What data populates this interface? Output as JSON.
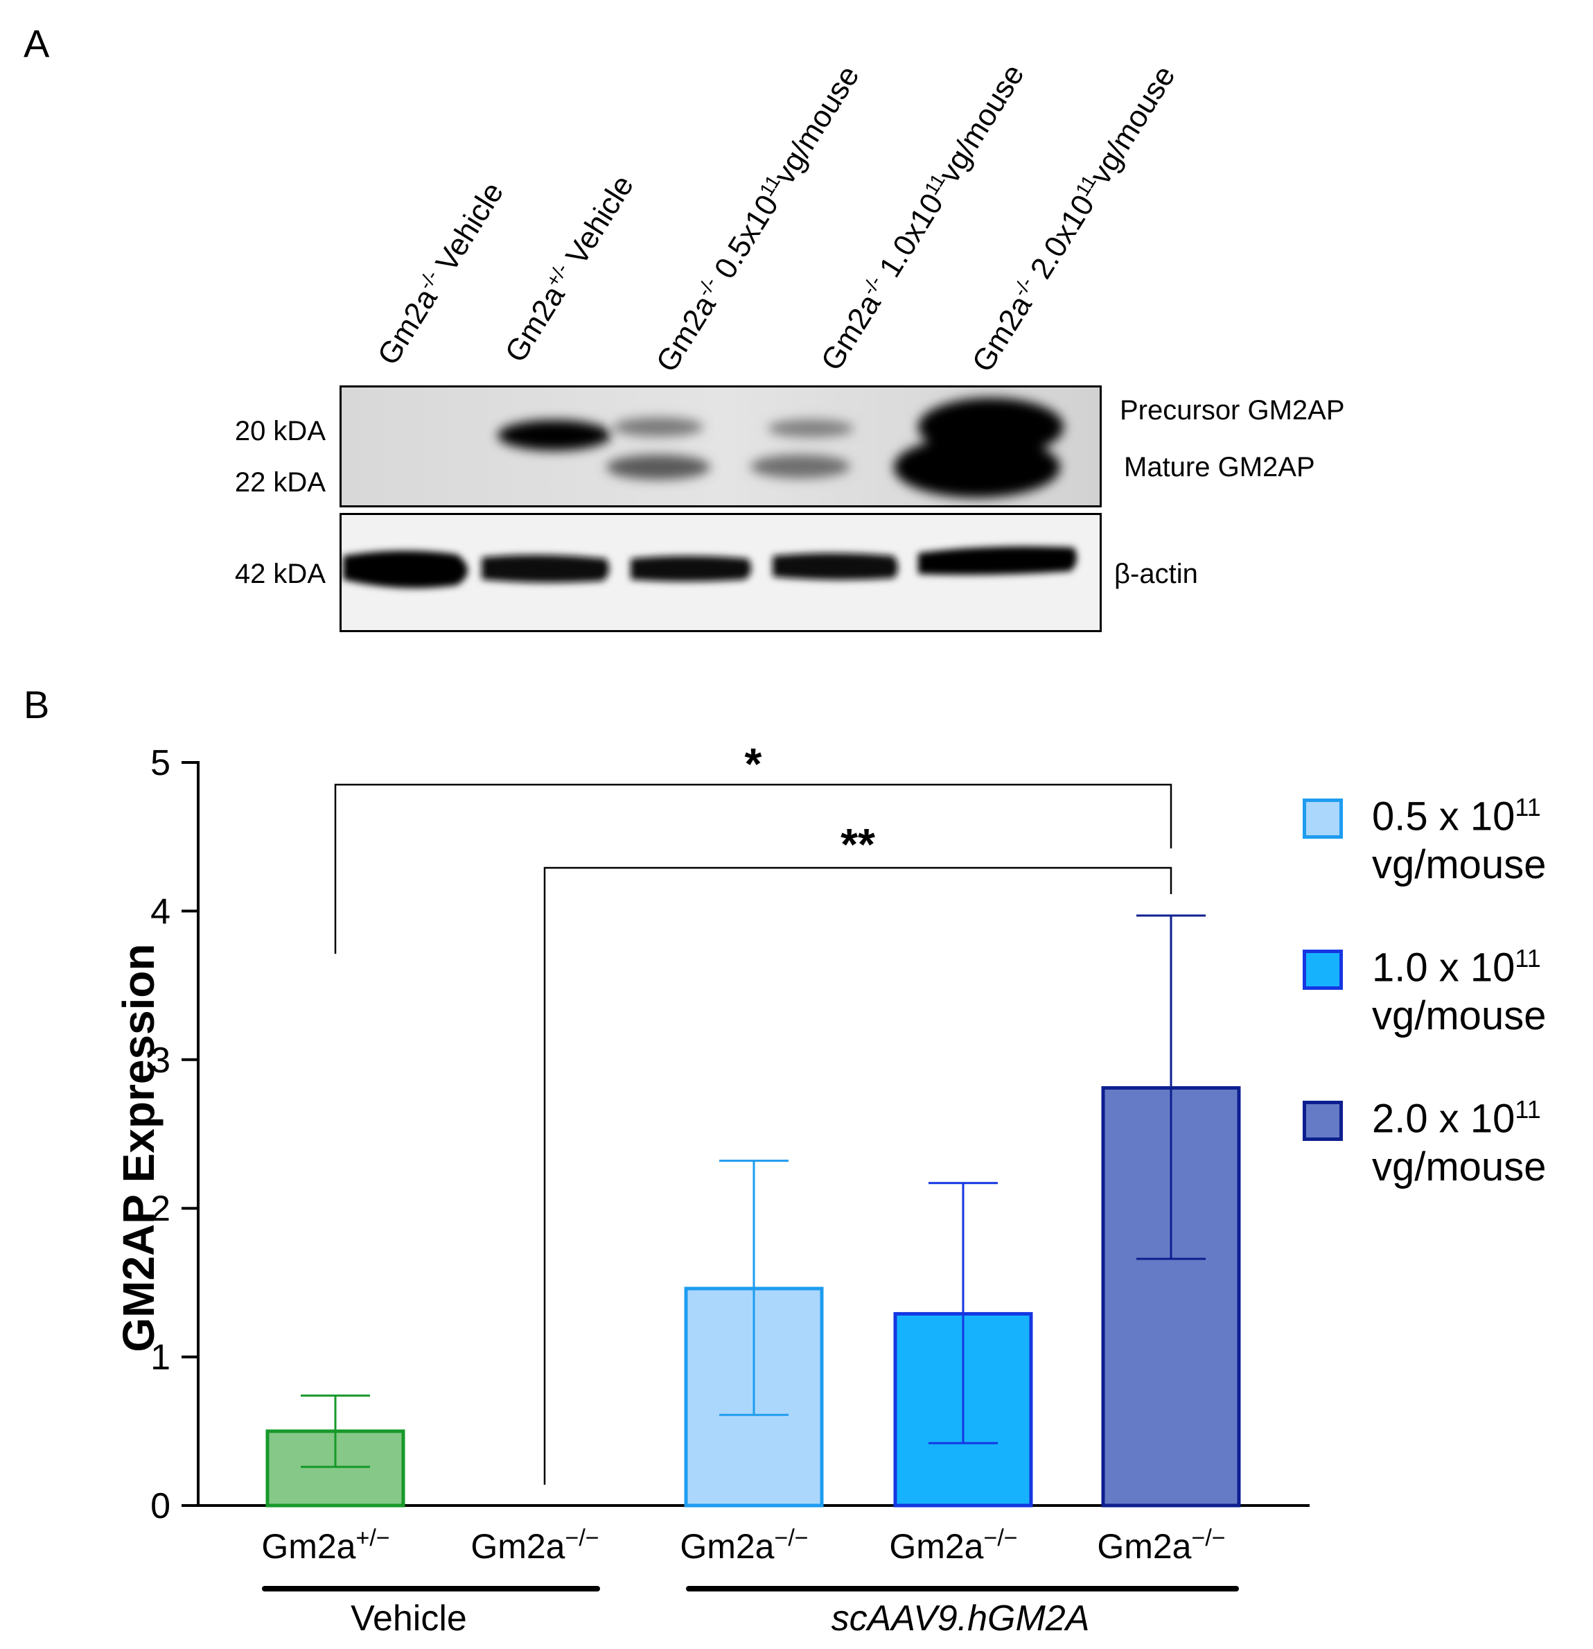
{
  "panelA": {
    "letter": "A",
    "lanes": [
      {
        "label": "Gm2a",
        "sup": "-/-",
        "rest": " Vehicle"
      },
      {
        "label": "Gm2a",
        "sup": "+/-",
        "rest": " Vehicle"
      },
      {
        "label": "Gm2a",
        "sup": "-/-",
        "rest": " 0.5x10",
        "sup2": "11",
        "rest2": "vg/mouse"
      },
      {
        "label": "Gm2a",
        "sup": "-/-",
        "rest": " 1.0x10",
        "sup2": "11",
        "rest2": "vg/mouse"
      },
      {
        "label": "Gm2a",
        "sup": "-/-",
        "rest": " 2.0x10",
        "sup2": "11",
        "rest2": "vg/mouse"
      }
    ],
    "markers": [
      "20 kDA",
      "22 kDA",
      "42 kDA"
    ],
    "band_labels": [
      "Precursor GM2AP",
      "Mature GM2AP",
      "β-actin"
    ]
  },
  "panelB": {
    "letter": "B",
    "chart_data": {
      "type": "bar",
      "ylabel": "GM2AP Expression",
      "ylim": [
        0,
        5
      ],
      "yticks": [
        "0",
        "1",
        "2",
        "3",
        "4",
        "5"
      ],
      "categories": [
        "Gm2a+/−",
        "Gm2a−/−",
        "Gm2a−/−",
        "Gm2a−/−",
        "Gm2a−/−"
      ],
      "category_base": "Gm2a",
      "category_sups": [
        "+/−",
        "−/−",
        "−/−",
        "−/−",
        "−/−"
      ],
      "values": [
        0.5,
        0,
        1.46,
        1.29,
        2.81
      ],
      "error_low": [
        0.26,
        0,
        0.61,
        0.42,
        1.66
      ],
      "error_high": [
        0.74,
        0,
        2.32,
        2.17,
        3.97
      ],
      "bar_fills": [
        "#86c888",
        "#ffffff",
        "#acd7fc",
        "#17b2fd",
        "#657bc5"
      ],
      "bar_strokes": [
        "#17992a",
        "#000000",
        "#1e9cf0",
        "#1536e2",
        "#0d1f8f"
      ],
      "group_labels": [
        "Vehicle",
        "scAAV9.hGM2A"
      ],
      "significance": [
        "*",
        "**"
      ],
      "legend": [
        {
          "line1": "0.5 x 10",
          "sup": "11",
          "line2": "vg/mouse",
          "fill": "#acd7fc",
          "stroke": "#1e9cf0"
        },
        {
          "line1": "1.0 x 10",
          "sup": "11",
          "line2": "vg/mouse",
          "fill": "#17b2fd",
          "stroke": "#1536e2"
        },
        {
          "line1": "2.0 x 10",
          "sup": "11",
          "line2": "vg/mouse",
          "fill": "#657bc5",
          "stroke": "#0d1f8f"
        }
      ]
    }
  }
}
